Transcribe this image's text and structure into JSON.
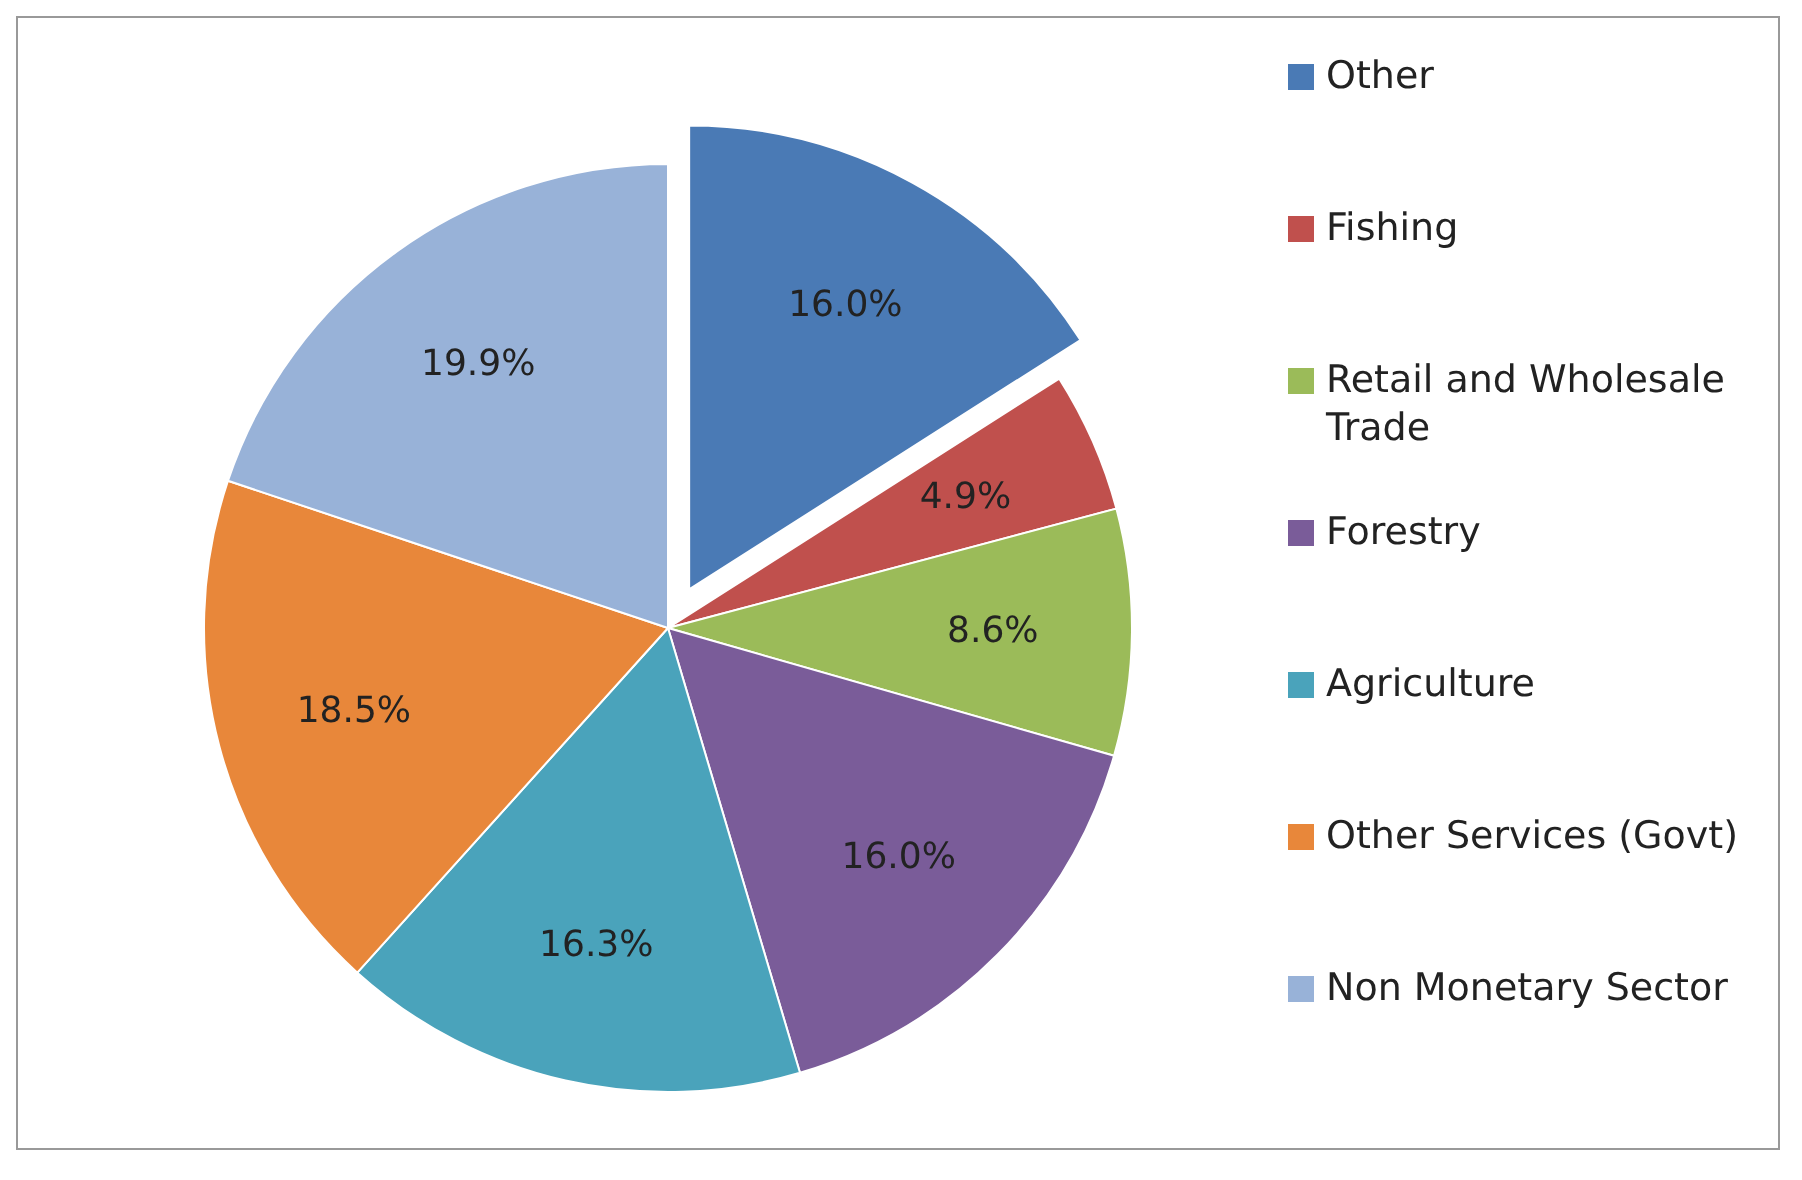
{
  "chart_data": {
    "type": "pie",
    "categories": [
      "Other",
      "Fishing",
      "Retail and Wholesale Trade",
      "Forestry",
      "Agriculture",
      "Other Services (Govt)",
      "Non Monetary Sector"
    ],
    "values": [
      16.0,
      4.9,
      8.6,
      16.0,
      16.3,
      18.5,
      19.9
    ],
    "value_labels": [
      "16.0%",
      "4.9%",
      "8.6%",
      "16.0%",
      "16.3%",
      "18.5%",
      "19.9%"
    ],
    "colors": [
      "#4a7ab5",
      "#c0504d",
      "#9bbb59",
      "#7a5c99",
      "#4aa3bb",
      "#e8873a",
      "#98b2d8"
    ],
    "legend": "right"
  }
}
